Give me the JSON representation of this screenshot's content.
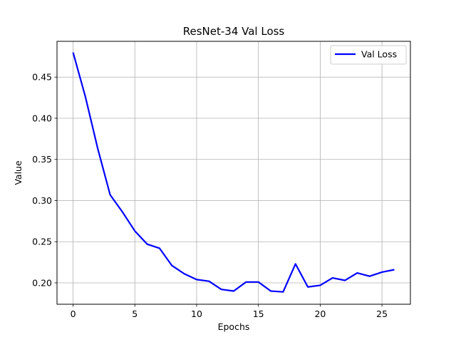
{
  "chart_data": {
    "type": "line",
    "title": "ResNet-34 Val Loss",
    "xlabel": "Epochs",
    "ylabel": "Value",
    "xlim": [
      -1.3,
      27.3
    ],
    "ylim": [
      0.174,
      0.4935
    ],
    "xticks": [
      0,
      5,
      10,
      15,
      20,
      25
    ],
    "yticks": [
      0.2,
      0.25,
      0.3,
      0.35,
      0.4,
      0.45
    ],
    "grid": true,
    "legend": "top-right",
    "series": [
      {
        "name": "Val Loss",
        "color": "#0000ff",
        "x": [
          0,
          1,
          2,
          3,
          4,
          5,
          6,
          7,
          8,
          9,
          10,
          11,
          12,
          13,
          14,
          15,
          16,
          17,
          18,
          19,
          20,
          21,
          22,
          23,
          24,
          25,
          26
        ],
        "values": [
          0.48,
          0.426,
          0.363,
          0.307,
          0.286,
          0.263,
          0.247,
          0.242,
          0.221,
          0.211,
          0.204,
          0.202,
          0.192,
          0.19,
          0.201,
          0.201,
          0.19,
          0.189,
          0.223,
          0.195,
          0.197,
          0.206,
          0.203,
          0.212,
          0.208,
          0.213,
          0.216
        ]
      }
    ]
  }
}
